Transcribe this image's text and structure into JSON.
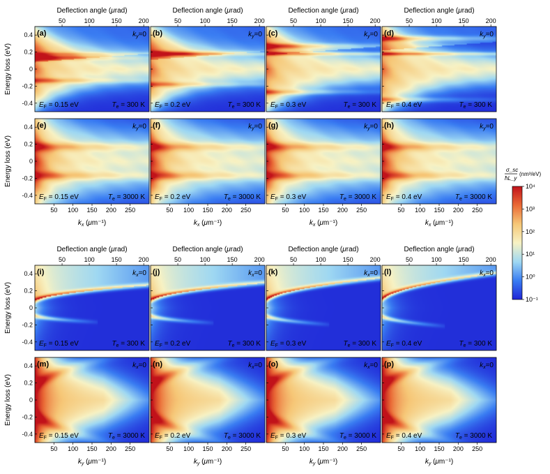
{
  "chart_data": {
    "type": "heatmap",
    "colors": {
      "cmap": [
        "#1f24d6",
        "#3a7df2",
        "#9fd8f2",
        "#f7f2c4",
        "#f6c777",
        "#ea6a36",
        "#c1121a"
      ],
      "background_low": "#1f24d6"
    },
    "axes": {
      "energy_label": "Energy loss (eV)",
      "energy_ticks": [
        "0.4",
        "0.2",
        "0",
        "-0.2",
        "-0.4"
      ],
      "energy_range": [
        -0.5,
        0.5
      ],
      "deflection_label": "Deflection angle (μrad)",
      "deflection_ticks": [
        "50",
        "100",
        "150",
        "200"
      ],
      "deflection_range": [
        0,
        210
      ],
      "k_ticks": [
        "50",
        "100",
        "150",
        "200",
        "250"
      ],
      "k_range": [
        0,
        300
      ],
      "kx_label": "kx (μm⁻¹)",
      "ky_label": "ky (μm⁻¹)"
    },
    "colorbar": {
      "title_num": "σ_sc",
      "title_den": "ħL_y",
      "unit": "(nm³/eV)",
      "scale": "log",
      "ticks": [
        "10⁴",
        "10³",
        "10²",
        "10¹",
        "10⁰",
        "10⁻¹"
      ],
      "range": [
        0.1,
        10000
      ]
    },
    "panels": [
      {
        "label": "(a)",
        "kcond": "ky=0",
        "ef": "EF = 0.15 eV",
        "te": "Te = 300 K",
        "EF": 0.15,
        "Te": 300,
        "dir": "kx"
      },
      {
        "label": "(b)",
        "kcond": "ky=0",
        "ef": "EF = 0.2 eV",
        "te": "Te = 300 K",
        "EF": 0.2,
        "Te": 300,
        "dir": "kx"
      },
      {
        "label": "(c)",
        "kcond": "ky=0",
        "ef": "EF = 0.3 eV",
        "te": "Te = 300 K",
        "EF": 0.3,
        "Te": 300,
        "dir": "kx"
      },
      {
        "label": "(d)",
        "kcond": "ky=0",
        "ef": "EF = 0.4 eV",
        "te": "Te = 300 K",
        "EF": 0.4,
        "Te": 300,
        "dir": "kx"
      },
      {
        "label": "(e)",
        "kcond": "ky=0",
        "ef": "EF = 0.15 eV",
        "te": "Te = 3000 K",
        "EF": 0.15,
        "Te": 3000,
        "dir": "kx"
      },
      {
        "label": "(f)",
        "kcond": "ky=0",
        "ef": "EF = 0.2 eV",
        "te": "Te = 3000 K",
        "EF": 0.2,
        "Te": 3000,
        "dir": "kx"
      },
      {
        "label": "(g)",
        "kcond": "ky=0",
        "ef": "EF = 0.3 eV",
        "te": "Te = 3000 K",
        "EF": 0.3,
        "Te": 3000,
        "dir": "kx"
      },
      {
        "label": "(h)",
        "kcond": "ky=0",
        "ef": "EF = 0.4 eV",
        "te": "Te = 3000 K",
        "EF": 0.4,
        "Te": 3000,
        "dir": "kx"
      },
      {
        "label": "(i)",
        "kcond": "kx=0",
        "ef": "EF = 0.15 eV",
        "te": "Te = 300 K",
        "EF": 0.15,
        "Te": 300,
        "dir": "ky"
      },
      {
        "label": "(j)",
        "kcond": "kx=0",
        "ef": "EF = 0.2 eV",
        "te": "Te = 300 K",
        "EF": 0.2,
        "Te": 300,
        "dir": "ky"
      },
      {
        "label": "(k)",
        "kcond": "kx=0",
        "ef": "EF = 0.3 eV",
        "te": "Te = 300 K",
        "EF": 0.3,
        "Te": 300,
        "dir": "ky"
      },
      {
        "label": "(l)",
        "kcond": "kx=0",
        "ef": "EF = 0.4 eV",
        "te": "Te = 300 K",
        "EF": 0.4,
        "Te": 300,
        "dir": "ky"
      },
      {
        "label": "(m)",
        "kcond": "kx=0",
        "ef": "EF = 0.15 eV",
        "te": "Te = 3000 K",
        "EF": 0.15,
        "Te": 3000,
        "dir": "ky"
      },
      {
        "label": "(n)",
        "kcond": "kx=0",
        "ef": "EF = 0.2 eV",
        "te": "Te = 3000 K",
        "EF": 0.2,
        "Te": 3000,
        "dir": "ky"
      },
      {
        "label": "(o)",
        "kcond": "kx=0",
        "ef": "EF = 0.3 eV",
        "te": "Te = 3000 K",
        "EF": 0.3,
        "Te": 3000,
        "dir": "ky"
      },
      {
        "label": "(p)",
        "kcond": "kx=0",
        "ef": "EF = 0.4 eV",
        "te": "Te = 3000 K",
        "EF": 0.4,
        "Te": 3000,
        "dir": "ky"
      }
    ]
  }
}
